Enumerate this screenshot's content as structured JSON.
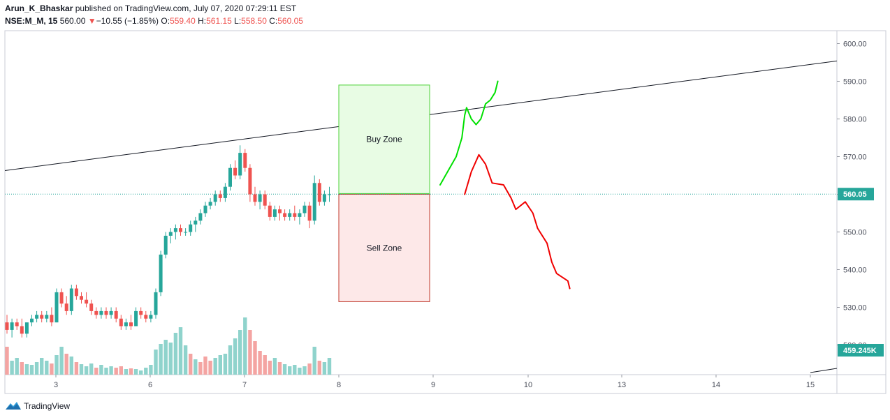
{
  "header": {
    "author": "Arun_K_Bhaskar",
    "published_text": "published on TradingView.com, July 07, 2020 07:29:11 EST",
    "symbol": "NSE:M_M, 15",
    "last": "560.00",
    "change_arrow": "▼",
    "change": "−10.55 (−1.85%)",
    "o_label": "O:",
    "o": "559.40",
    "h_label": "H:",
    "h": "561.15",
    "l_label": "L:",
    "l": "558.50",
    "c_label": "C:",
    "c": "560.05"
  },
  "footer": {
    "brand": "TradingView",
    "logo_icon": "tradingview-logo-icon"
  },
  "chart_data": {
    "type": "candlestick",
    "y_ticks": [
      "600.00",
      "590.00",
      "580.00",
      "570.00",
      "560.00",
      "550.00",
      "540.00",
      "530.00",
      "520.00"
    ],
    "x_ticks": [
      "3",
      "6",
      "7",
      "8",
      "9",
      "10",
      "13",
      "14",
      "15"
    ],
    "ylim": [
      509,
      604
    ],
    "price_label": "560.05",
    "price_line": 560.05,
    "volume_label": "459.245K",
    "colors": {
      "up": "#26a69a",
      "down": "#ef5350",
      "up_vol": "#8fd3cc",
      "down_vol": "#f4a4a2",
      "price_line": "#26a69a"
    },
    "zones": [
      {
        "label": "Buy Zone",
        "top": 589,
        "bottom": 560.2,
        "fill": "#e8fce4",
        "stroke": "#4cd137"
      },
      {
        "label": "Sell Zone",
        "top": 560,
        "bottom": 531.5,
        "fill": "#fde8e8",
        "stroke": "#c0392b"
      }
    ],
    "trendline": {
      "from": {
        "day": "2 (start)",
        "price": 566.3
      },
      "to": {
        "day": "15+",
        "price": 595.4
      }
    },
    "candles_ohlc": [
      [
        526,
        528,
        523,
        524
      ],
      [
        524,
        527,
        522,
        526
      ],
      [
        526,
        527,
        524,
        525
      ],
      [
        525,
        527,
        522,
        523
      ],
      [
        523,
        526,
        522,
        526
      ],
      [
        526,
        528,
        525,
        527
      ],
      [
        527,
        529,
        526,
        528
      ],
      [
        528,
        529,
        526,
        527
      ],
      [
        527,
        529,
        526,
        528
      ],
      [
        528,
        530,
        525,
        526
      ],
      [
        526,
        535,
        526,
        534
      ],
      [
        534,
        535,
        530,
        531
      ],
      [
        531,
        533,
        528,
        529
      ],
      [
        529,
        536,
        528,
        535
      ],
      [
        535,
        536,
        532,
        533
      ],
      [
        533,
        534,
        531,
        532
      ],
      [
        532,
        534,
        530,
        531
      ],
      [
        531,
        532,
        528,
        529
      ],
      [
        529,
        530,
        527,
        528
      ],
      [
        528,
        530,
        527,
        529
      ],
      [
        529,
        530,
        527,
        528
      ],
      [
        528,
        530,
        527,
        529
      ],
      [
        529,
        530,
        526,
        527
      ],
      [
        527,
        528,
        524,
        525
      ],
      [
        525,
        527,
        524,
        526
      ],
      [
        526,
        528,
        524,
        525
      ],
      [
        525,
        530,
        525,
        529
      ],
      [
        529,
        530,
        527,
        528
      ],
      [
        528,
        529,
        526,
        527
      ],
      [
        527,
        529,
        526,
        528
      ],
      [
        528,
        535,
        527,
        534
      ],
      [
        534,
        545,
        533,
        544
      ],
      [
        544,
        550,
        543,
        549
      ],
      [
        549,
        551,
        547,
        550
      ],
      [
        550,
        552,
        548,
        551
      ],
      [
        551,
        552,
        549,
        550
      ],
      [
        550,
        551,
        549,
        550
      ],
      [
        550,
        553,
        549,
        552
      ],
      [
        552,
        554,
        550,
        553
      ],
      [
        553,
        556,
        552,
        555
      ],
      [
        555,
        558,
        554,
        557
      ],
      [
        557,
        559,
        556,
        558
      ],
      [
        558,
        561,
        557,
        560
      ],
      [
        560,
        561,
        558,
        559
      ],
      [
        559,
        563,
        558,
        562
      ],
      [
        562,
        568,
        561,
        567
      ],
      [
        567,
        569,
        564,
        565
      ],
      [
        565,
        573,
        564,
        571
      ],
      [
        571,
        572,
        566,
        567
      ],
      [
        567,
        568,
        558,
        560
      ],
      [
        560,
        562,
        557,
        558
      ],
      [
        558,
        561,
        556,
        560
      ],
      [
        560,
        561,
        556,
        557
      ],
      [
        557,
        558,
        553,
        554
      ],
      [
        554,
        557,
        553,
        556
      ],
      [
        556,
        557,
        553,
        555
      ],
      [
        555,
        556,
        553,
        554
      ],
      [
        554,
        556,
        553,
        555
      ],
      [
        555,
        557,
        553,
        554
      ],
      [
        554,
        556,
        552,
        555
      ],
      [
        555,
        558,
        554,
        557
      ],
      [
        557,
        558,
        551,
        553
      ],
      [
        553,
        565,
        552,
        563
      ],
      [
        563,
        564,
        557,
        558
      ],
      [
        558,
        561,
        557,
        560
      ],
      [
        560,
        562,
        558,
        560
      ]
    ],
    "volumes": [
      [
        40,
        0
      ],
      [
        20,
        1
      ],
      [
        24,
        1
      ],
      [
        18,
        0
      ],
      [
        15,
        1
      ],
      [
        14,
        1
      ],
      [
        18,
        1
      ],
      [
        24,
        1
      ],
      [
        20,
        1
      ],
      [
        16,
        0
      ],
      [
        28,
        1
      ],
      [
        40,
        1
      ],
      [
        30,
        0
      ],
      [
        26,
        1
      ],
      [
        18,
        0
      ],
      [
        15,
        1
      ],
      [
        12,
        1
      ],
      [
        16,
        1
      ],
      [
        10,
        0
      ],
      [
        14,
        1
      ],
      [
        10,
        1
      ],
      [
        12,
        1
      ],
      [
        10,
        0
      ],
      [
        12,
        0
      ],
      [
        8,
        1
      ],
      [
        9,
        0
      ],
      [
        8,
        1
      ],
      [
        6,
        1
      ],
      [
        10,
        1
      ],
      [
        14,
        1
      ],
      [
        36,
        1
      ],
      [
        44,
        1
      ],
      [
        50,
        1
      ],
      [
        46,
        1
      ],
      [
        60,
        1
      ],
      [
        68,
        1
      ],
      [
        42,
        1
      ],
      [
        30,
        0
      ],
      [
        22,
        1
      ],
      [
        18,
        0
      ],
      [
        26,
        0
      ],
      [
        20,
        0
      ],
      [
        24,
        1
      ],
      [
        28,
        1
      ],
      [
        30,
        1
      ],
      [
        42,
        1
      ],
      [
        52,
        1
      ],
      [
        64,
        1
      ],
      [
        82,
        1
      ],
      [
        64,
        0
      ],
      [
        48,
        0
      ],
      [
        34,
        0
      ],
      [
        28,
        0
      ],
      [
        20,
        0
      ],
      [
        24,
        1
      ],
      [
        18,
        0
      ],
      [
        15,
        1
      ],
      [
        12,
        1
      ],
      [
        14,
        1
      ],
      [
        10,
        1
      ],
      [
        12,
        1
      ],
      [
        16,
        0
      ],
      [
        40,
        1
      ],
      [
        20,
        0
      ],
      [
        18,
        1
      ],
      [
        24,
        1
      ]
    ],
    "annotations": [
      {
        "type": "freehand",
        "color": "#00e000",
        "points": [
          [
            9.07,
            562.5
          ],
          [
            9.24,
            570
          ],
          [
            9.3,
            575
          ],
          [
            9.33,
            581
          ],
          [
            9.35,
            583
          ],
          [
            9.4,
            580
          ],
          [
            9.45,
            578.5
          ],
          [
            9.5,
            580
          ],
          [
            9.55,
            584
          ],
          [
            9.6,
            585
          ],
          [
            9.65,
            587
          ],
          [
            9.68,
            590
          ]
        ]
      },
      {
        "type": "freehand",
        "color": "#f00000",
        "points": [
          [
            9.33,
            560
          ],
          [
            9.4,
            566
          ],
          [
            9.48,
            570.5
          ],
          [
            9.55,
            568
          ],
          [
            9.62,
            563
          ],
          [
            9.74,
            562.5
          ],
          [
            9.82,
            559
          ],
          [
            9.87,
            556
          ],
          [
            9.97,
            558
          ],
          [
            10.05,
            555
          ],
          [
            10.1,
            551
          ],
          [
            10.2,
            547
          ],
          [
            10.25,
            542
          ],
          [
            10.3,
            539
          ],
          [
            10.42,
            537
          ],
          [
            10.44,
            535
          ]
        ]
      }
    ]
  }
}
